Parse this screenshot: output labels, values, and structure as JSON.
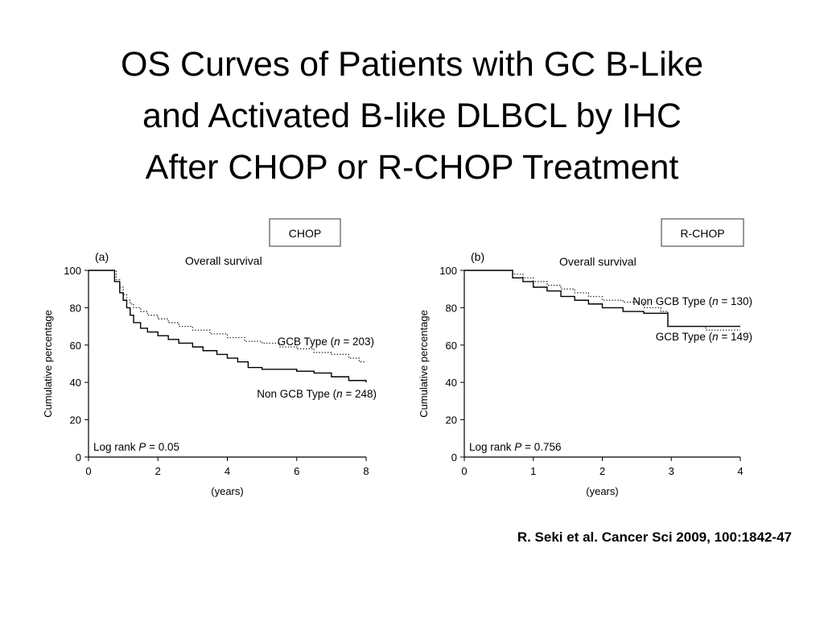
{
  "slide": {
    "title_lines": [
      "OS Curves of Patients with GC B-Like",
      "and Activated B-like DLBCL by IHC",
      "After CHOP or R-CHOP Treatment"
    ],
    "citation": "R. Seki et al. Cancer Sci 2009, 100:1842-47"
  },
  "chart_data": [
    {
      "type": "line",
      "panel_label": "(a)",
      "treatment": "CHOP",
      "title": "Overall survival",
      "xlabel": "(years)",
      "ylabel": "Cumulative percentage",
      "xlim": [
        0,
        8
      ],
      "ylim": [
        0,
        100
      ],
      "xticks": [
        0,
        2,
        4,
        6,
        8
      ],
      "yticks": [
        0,
        20,
        40,
        60,
        80,
        100
      ],
      "grid": false,
      "annotation": {
        "prefix": "Log rank ",
        "p": "P",
        "suffix": " = 0.05"
      },
      "series": [
        {
          "name_parts": [
            "GCB Type (",
            "n",
            " = 203)"
          ],
          "style": "dotted",
          "x": [
            0,
            0.6,
            0.8,
            0.9,
            1.0,
            1.1,
            1.2,
            1.3,
            1.5,
            1.7,
            2.0,
            2.3,
            2.6,
            3.0,
            3.5,
            4.0,
            4.5,
            5.0,
            5.5,
            6.0,
            6.5,
            7.0,
            7.5,
            7.8,
            8.0
          ],
          "y": [
            100,
            100,
            95,
            91,
            87,
            84,
            82,
            80,
            78,
            76,
            74,
            72,
            70,
            68,
            66,
            64,
            62,
            61,
            59,
            58,
            56,
            55,
            53,
            51,
            51
          ]
        },
        {
          "name_parts": [
            "Non GCB Type (",
            "n",
            " = 248)"
          ],
          "style": "solid",
          "x": [
            0,
            0.6,
            0.75,
            0.9,
            1.0,
            1.1,
            1.2,
            1.3,
            1.5,
            1.7,
            2.0,
            2.3,
            2.6,
            3.0,
            3.3,
            3.7,
            4.0,
            4.3,
            4.6,
            5.0,
            6.0,
            6.5,
            7.0,
            7.5,
            8.0
          ],
          "y": [
            100,
            100,
            94,
            88,
            84,
            80,
            76,
            72,
            69,
            67,
            65,
            63,
            61,
            59,
            57,
            55,
            53,
            51,
            48,
            47,
            46,
            45,
            43,
            41,
            40
          ]
        }
      ]
    },
    {
      "type": "line",
      "panel_label": "(b)",
      "treatment": "R-CHOP",
      "title": "Overall survival",
      "xlabel": "(years)",
      "ylabel": "Cumulative percentage",
      "xlim": [
        0,
        4
      ],
      "ylim": [
        0,
        100
      ],
      "xticks": [
        0,
        1,
        2,
        3,
        4
      ],
      "yticks": [
        0,
        20,
        40,
        60,
        80,
        100
      ],
      "grid": false,
      "annotation": {
        "prefix": "Log rank ",
        "p": "P",
        "suffix": " = 0.756"
      },
      "series": [
        {
          "name_parts": [
            "Non GCB Type (",
            "n",
            " = 130)"
          ],
          "style": "dotted",
          "x": [
            0,
            0.55,
            0.7,
            0.85,
            1.0,
            1.2,
            1.4,
            1.6,
            1.8,
            2.0,
            2.3,
            2.6,
            2.85,
            2.95,
            3.5,
            4.0
          ],
          "y": [
            100,
            100,
            98,
            96,
            94,
            92,
            90,
            88,
            86,
            84,
            83,
            80,
            78,
            70,
            68,
            68
          ]
        },
        {
          "name_parts": [
            "GCB Type (",
            "n",
            " = 149)"
          ],
          "style": "solid",
          "x": [
            0,
            0.55,
            0.7,
            0.85,
            1.0,
            1.2,
            1.4,
            1.6,
            1.8,
            2.0,
            2.3,
            2.6,
            2.95,
            3.5,
            4.0
          ],
          "y": [
            100,
            100,
            96,
            94,
            91,
            89,
            86,
            84,
            82,
            80,
            78,
            77,
            70,
            70,
            70
          ]
        }
      ]
    }
  ]
}
